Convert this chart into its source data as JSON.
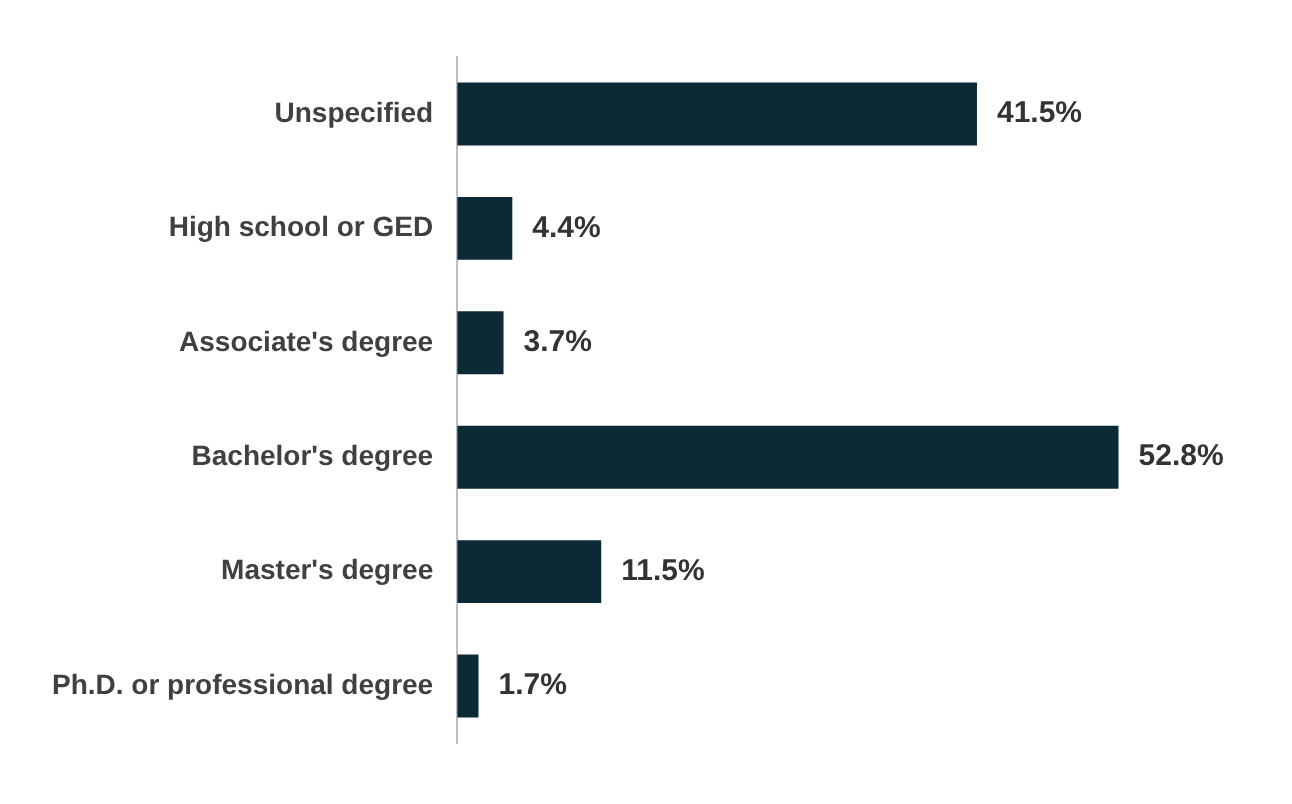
{
  "chart_data": {
    "type": "bar",
    "orientation": "horizontal",
    "categories": [
      "Unspecified",
      "High school or GED",
      "Associate's degree",
      "Bachelor's degree",
      "Master's degree",
      "Ph.D. or professional degree"
    ],
    "values": [
      41.5,
      4.4,
      3.7,
      52.8,
      11.5,
      1.7
    ],
    "value_labels": [
      "41.5%",
      "4.4%",
      "3.7%",
      "52.8%",
      "11.5%",
      "1.7%"
    ],
    "color": "#0c2a35"
  }
}
